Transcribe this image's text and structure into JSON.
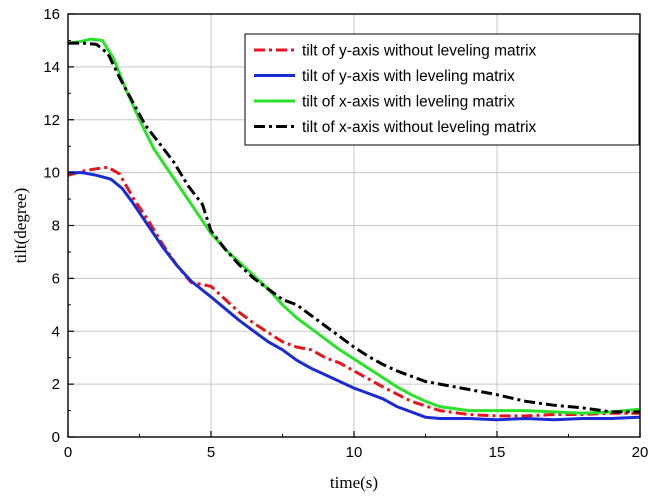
{
  "chart_data": {
    "type": "line",
    "title": "",
    "xlabel": "time(s)",
    "ylabel": "tilt(degree)",
    "xlim": [
      0,
      20
    ],
    "ylim": [
      0,
      16
    ],
    "xticks": [
      0,
      5,
      10,
      15,
      20
    ],
    "yticks": [
      0,
      2,
      4,
      6,
      8,
      10,
      12,
      14,
      16
    ],
    "grid": true,
    "legend_position": "top-right",
    "series": [
      {
        "name": "tilt of y-axis without leveling matrix",
        "color": "#e8141b",
        "dash": "dash-dot",
        "x": [
          0,
          0.5,
          1,
          1.4,
          1.8,
          2.3,
          2.8,
          3.3,
          3.8,
          4.3,
          5,
          5.5,
          6,
          6.5,
          7,
          7.5,
          8,
          8.5,
          9,
          9.5,
          10,
          11,
          12,
          13,
          14,
          15,
          16,
          17,
          18,
          19,
          20
        ],
        "y": [
          9.9,
          10.05,
          10.15,
          10.2,
          9.95,
          9.0,
          8.2,
          7.3,
          6.5,
          5.85,
          5.7,
          5.2,
          4.7,
          4.3,
          3.95,
          3.6,
          3.4,
          3.3,
          3.0,
          2.8,
          2.5,
          1.9,
          1.35,
          1.0,
          0.85,
          0.8,
          0.8,
          0.85,
          0.85,
          0.9,
          0.9
        ]
      },
      {
        "name": "tilt of y-axis with leveling matrix",
        "color": "#1a2bd6",
        "dash": "solid",
        "x": [
          0,
          0.5,
          1,
          1.5,
          1.9,
          2.3,
          2.8,
          3.3,
          3.8,
          4.3,
          5,
          5.5,
          6,
          6.5,
          7,
          7.5,
          8,
          8.5,
          9,
          9.5,
          10,
          10.5,
          11,
          11.5,
          12,
          12.5,
          13,
          14,
          15,
          16,
          17,
          18,
          19,
          20
        ],
        "y": [
          10.0,
          10.0,
          9.9,
          9.75,
          9.4,
          8.8,
          8.0,
          7.2,
          6.5,
          5.9,
          5.3,
          4.85,
          4.4,
          4.0,
          3.6,
          3.3,
          2.9,
          2.6,
          2.35,
          2.1,
          1.85,
          1.65,
          1.45,
          1.15,
          0.95,
          0.75,
          0.7,
          0.7,
          0.65,
          0.7,
          0.65,
          0.7,
          0.7,
          0.75
        ]
      },
      {
        "name": "tilt of x-axis with leveling matrix",
        "color": "#2be22b",
        "dash": "solid",
        "x": [
          0,
          0.4,
          0.8,
          1.2,
          1.6,
          2.0,
          2.5,
          3.0,
          3.5,
          4.0,
          4.5,
          5.0,
          5.5,
          6.0,
          6.5,
          7.0,
          7.5,
          8.0,
          8.5,
          9.0,
          9.5,
          10,
          10.5,
          11,
          11.5,
          12,
          12.5,
          13,
          14,
          15,
          16,
          17,
          18,
          19,
          20
        ],
        "y": [
          14.9,
          14.95,
          15.05,
          15.0,
          14.3,
          13.2,
          12.0,
          10.9,
          10.1,
          9.3,
          8.5,
          7.7,
          7.1,
          6.6,
          6.1,
          5.6,
          5.0,
          4.5,
          4.1,
          3.7,
          3.3,
          2.95,
          2.6,
          2.25,
          1.9,
          1.6,
          1.35,
          1.15,
          1.0,
          1.0,
          1.0,
          0.95,
          0.9,
          0.95,
          1.05
        ]
      },
      {
        "name": "tilt of x-axis without leveling matrix",
        "color": "#000000",
        "dash": "dash-dot",
        "x": [
          0,
          0.5,
          1,
          1.4,
          1.8,
          2.2,
          2.7,
          3.2,
          3.7,
          4.2,
          4.7,
          5.0,
          5.5,
          6.0,
          6.5,
          7.0,
          7.5,
          8.0,
          8.5,
          9.0,
          9.5,
          10,
          10.5,
          11,
          11.5,
          12,
          12.5,
          13,
          14,
          15,
          16,
          17,
          18,
          19,
          20
        ],
        "y": [
          14.9,
          14.9,
          14.85,
          14.5,
          13.6,
          12.8,
          11.8,
          11.1,
          10.4,
          9.5,
          8.8,
          7.8,
          7.1,
          6.5,
          6.0,
          5.6,
          5.2,
          5.0,
          4.6,
          4.2,
          3.8,
          3.4,
          3.05,
          2.75,
          2.5,
          2.3,
          2.1,
          2.0,
          1.8,
          1.6,
          1.35,
          1.2,
          1.1,
          0.95,
          0.95
        ]
      }
    ]
  }
}
